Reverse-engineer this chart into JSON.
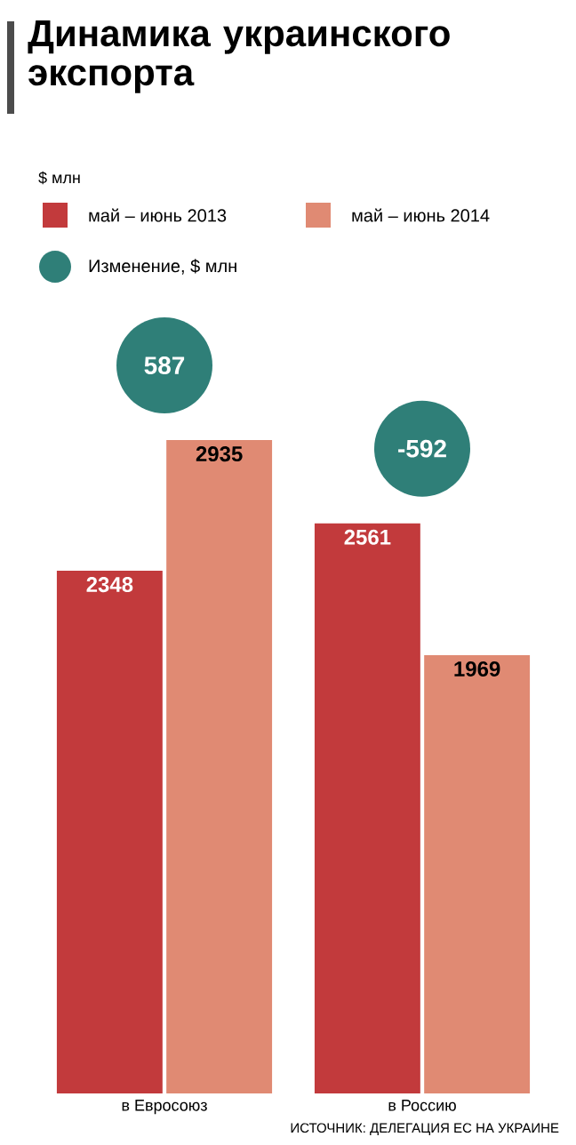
{
  "chart_data": {
    "type": "bar",
    "title": "Динамика украинского экспорта",
    "categories": [
      "в Евросоюз",
      "в Россию"
    ],
    "series": [
      {
        "name": "май – июнь 2013",
        "color": "#c23a3c",
        "values": [
          2348,
          2561
        ]
      },
      {
        "name": "май – июнь 2014",
        "color": "#e08a73",
        "values": [
          2935,
          1969
        ]
      }
    ],
    "data_labels": true,
    "legend": "top",
    "annotations": [
      "$ млн",
      "Изменение, $ млн",
      "587",
      "-592",
      "ИСТОЧНИК: ДЕЛЕГАЦИЯ ЕС НА УКРАИНЕ"
    ]
  }
}
